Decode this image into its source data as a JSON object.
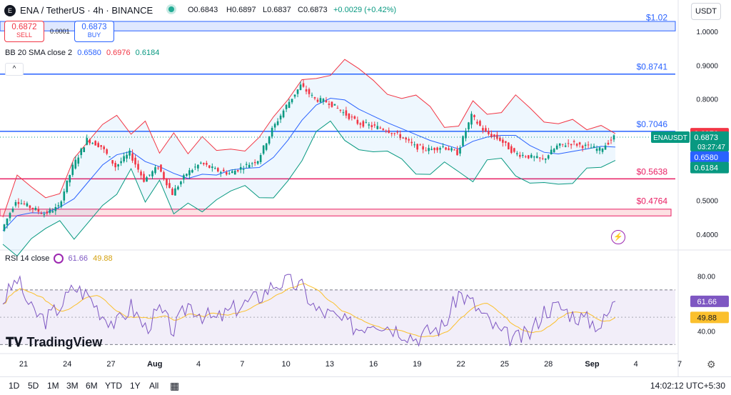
{
  "header": {
    "symbol": "ENA / TetherUS · 4h · BINANCE",
    "logo_text": "E",
    "open": "O0.6843",
    "high": "H0.6897",
    "low": "L0.6837",
    "close": "C0.6873",
    "change": "+0.0029 (+0.42%)",
    "sell_price": "0.6872",
    "sell_label": "SELL",
    "buy_price": "0.6873",
    "buy_label": "BUY",
    "spread": "0.0001",
    "currency_button": "USDT"
  },
  "indicators": {
    "bb_label": "BB 20 SMA close 2",
    "bb_values": [
      "0.6580",
      "0.6976",
      "0.6184"
    ],
    "rsi_label": "RSI 14 close",
    "rsi_values": [
      "61.66",
      "49.88"
    ],
    "collapse_glyph": "^"
  },
  "price_axis": {
    "ticks": [
      {
        "label": "1.0000",
        "value": 1.0
      },
      {
        "label": "0.9000",
        "value": 0.9
      },
      {
        "label": "0.8000",
        "value": 0.8
      },
      {
        "label": "0.5000",
        "value": 0.5
      },
      {
        "label": "0.4000",
        "value": 0.4
      }
    ]
  },
  "rsi_axis": {
    "ticks": [
      {
        "label": "80.00",
        "value": 80
      },
      {
        "label": "40.00",
        "value": 40
      }
    ]
  },
  "levels": [
    {
      "label": "$1.02",
      "value": 1.02,
      "color": "#2962ff",
      "zone": [
        1.002,
        1.03
      ]
    },
    {
      "label": "$0.8741",
      "value": 0.8741,
      "color": "#2962ff"
    },
    {
      "label": "$0.7046",
      "value": 0.7046,
      "color": "#2962ff"
    },
    {
      "label": "$0.5638",
      "value": 0.5638,
      "color": "#e91e63"
    },
    {
      "label": "$0.4764",
      "value": 0.4764,
      "color": "#e91e63",
      "zone": [
        0.454,
        0.474
      ]
    }
  ],
  "price_tags": {
    "symbol": "ENAUSDT",
    "last": "0.6873",
    "countdown": "03:27:47",
    "upper": "0.6976",
    "middle": "0.6580",
    "lower": "0.6184",
    "colors": {
      "last": "#089981",
      "upper": "#f23645",
      "middle": "#2962ff",
      "lower": "#089981"
    }
  },
  "rsi_tags": {
    "rsi": "61.66",
    "ma": "49.88",
    "colors": {
      "rsi": "#7e57c2",
      "ma": "#fbc02d"
    }
  },
  "time_axis": {
    "labels": [
      "21",
      "24",
      "27",
      "Aug",
      "4",
      "7",
      "10",
      "13",
      "16",
      "19",
      "22",
      "25",
      "28",
      "Sep",
      "4",
      "7"
    ]
  },
  "bottom_bar": {
    "timeframes": [
      "1D",
      "5D",
      "1M",
      "3M",
      "6M",
      "YTD",
      "1Y",
      "All"
    ],
    "clock": "14:02:12 UTC+5:30"
  },
  "branding": {
    "name": "TradingView"
  },
  "chart_data": {
    "type": "candlestick",
    "interval": "4h",
    "x_labels": [
      "21",
      "24",
      "27",
      "Aug",
      "4",
      "7",
      "10",
      "13",
      "16",
      "19",
      "22",
      "25",
      "28",
      "Sep"
    ],
    "price_ylim": [
      0.37,
      1.03
    ],
    "price_path": [
      [
        "21",
        0.41
      ],
      [
        "22",
        0.5
      ],
      [
        "23",
        0.48
      ],
      [
        "24",
        0.46
      ],
      [
        "25",
        0.48
      ],
      [
        "26",
        0.6
      ],
      [
        "27",
        0.68
      ],
      [
        "28",
        0.66
      ],
      [
        "29",
        0.6
      ],
      [
        "30",
        0.64
      ],
      [
        "31",
        0.56
      ],
      [
        "Aug",
        0.6
      ],
      [
        "2",
        0.52
      ],
      [
        "3",
        0.58
      ],
      [
        "4",
        0.61
      ],
      [
        "5",
        0.59
      ],
      [
        "6",
        0.58
      ],
      [
        "7",
        0.6
      ],
      [
        "8",
        0.62
      ],
      [
        "9",
        0.71
      ],
      [
        "10",
        0.78
      ],
      [
        "11",
        0.84
      ],
      [
        "12",
        0.8
      ],
      [
        "13",
        0.79
      ],
      [
        "14",
        0.76
      ],
      [
        "15",
        0.73
      ],
      [
        "16",
        0.72
      ],
      [
        "17",
        0.71
      ],
      [
        "18",
        0.69
      ],
      [
        "19",
        0.66
      ],
      [
        "20",
        0.65
      ],
      [
        "21b",
        0.66
      ],
      [
        "22",
        0.64
      ],
      [
        "23",
        0.75
      ],
      [
        "24",
        0.7
      ],
      [
        "25",
        0.68
      ],
      [
        "26",
        0.64
      ],
      [
        "27",
        0.63
      ],
      [
        "28",
        0.62
      ],
      [
        "29",
        0.66
      ],
      [
        "30",
        0.67
      ],
      [
        "31",
        0.66
      ],
      [
        "Sep",
        0.65
      ],
      [
        "2",
        0.6873
      ]
    ],
    "bollinger_last": {
      "basis": 0.658,
      "upper": 0.6976,
      "lower": 0.6184
    },
    "rsi": {
      "ylim": [
        25,
        95
      ],
      "bands": [
        30,
        70
      ],
      "mid": 50,
      "last": 61.66,
      "ma_last": 49.88,
      "path": [
        [
          "21",
          62
        ],
        [
          "22",
          78
        ],
        [
          "23",
          55
        ],
        [
          "24",
          48
        ],
        [
          "25",
          58
        ],
        [
          "26",
          72
        ],
        [
          "27",
          66
        ],
        [
          "28",
          52
        ],
        [
          "29",
          45
        ],
        [
          "30",
          58
        ],
        [
          "31",
          42
        ],
        [
          "Aug",
          55
        ],
        [
          "2",
          40
        ],
        [
          "3",
          60
        ],
        [
          "4",
          52
        ],
        [
          "5",
          48
        ],
        [
          "6",
          55
        ],
        [
          "7",
          60
        ],
        [
          "8",
          65
        ],
        [
          "9",
          74
        ],
        [
          "10",
          76
        ],
        [
          "11",
          72
        ],
        [
          "12",
          55
        ],
        [
          "13",
          52
        ],
        [
          "14",
          46
        ],
        [
          "15",
          42
        ],
        [
          "16",
          48
        ],
        [
          "17",
          44
        ],
        [
          "18",
          40
        ],
        [
          "19",
          35
        ],
        [
          "20",
          40
        ],
        [
          "21b",
          44
        ],
        [
          "22",
          68
        ],
        [
          "23",
          60
        ],
        [
          "24",
          48
        ],
        [
          "25",
          38
        ],
        [
          "26",
          34
        ],
        [
          "27",
          38
        ],
        [
          "28",
          55
        ],
        [
          "29",
          58
        ],
        [
          "30",
          52
        ],
        [
          "31",
          48
        ],
        [
          "Sep",
          44
        ],
        [
          "2",
          61.66
        ]
      ]
    }
  }
}
